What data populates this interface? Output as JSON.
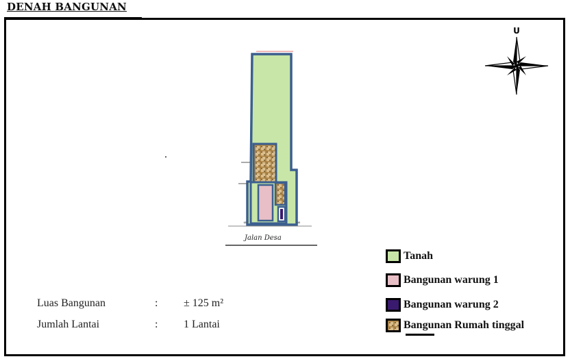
{
  "title": "DENAH BANGUNAN",
  "compass": {
    "label": "U",
    "icon": "north-arrow-compass-icon"
  },
  "map": {
    "road_label": "Jalan Desa",
    "colors": {
      "tanah": "#c8e6a8",
      "outline": "#3b5f8f",
      "warung1": "#e8bfc6",
      "warung2": "#3a1a6e",
      "rumah": "#cfae78"
    }
  },
  "info": {
    "luas_label": "Luas Bangunan",
    "luas_sep": ":",
    "luas_value": "± 125 m²",
    "lantai_label": "Jumlah Lantai",
    "lantai_sep": ":",
    "lantai_value": "1 Lantai"
  },
  "legend": [
    {
      "label": "Tanah",
      "color": "#c8e6a8"
    },
    {
      "label": "Bangunan warung 1",
      "color": "#e8bfc6"
    },
    {
      "label": "Bangunan warung 2",
      "color": "#3a1a6e"
    },
    {
      "label": "Bangunan Rumah tinggal",
      "color": "#cfae78"
    }
  ]
}
